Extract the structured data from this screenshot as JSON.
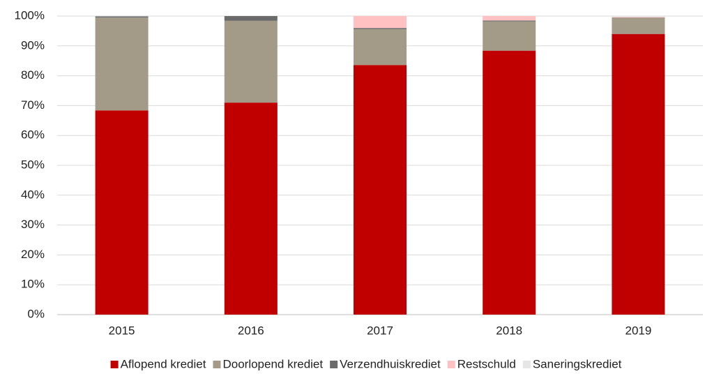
{
  "chart_data": {
    "type": "stacked_bar",
    "categories": [
      "2015",
      "2016",
      "2017",
      "2018",
      "2019"
    ],
    "series": [
      {
        "name": "Aflopend krediet",
        "color": "#c00000",
        "values": [
          68.4,
          71.0,
          83.6,
          88.4,
          94.0
        ]
      },
      {
        "name": "Doorlopend krediet",
        "color": "#a39b87",
        "values": [
          31.1,
          27.4,
          12.0,
          9.8,
          5.4
        ]
      },
      {
        "name": "Verzendhuiskrediet",
        "color": "#6b6b6b",
        "values": [
          0.4,
          1.6,
          0.4,
          0.3,
          0.1
        ]
      },
      {
        "name": "Restschuld",
        "color": "#ffc1c1",
        "values": [
          0,
          0,
          4.0,
          1.5,
          0.2
        ]
      },
      {
        "name": "Saneringskrediet",
        "color": "#e6e6e6",
        "values": [
          0.1,
          0,
          0,
          0,
          0.3
        ]
      }
    ],
    "ylim": [
      0,
      100
    ],
    "yticks": [
      {
        "value": 0,
        "label": "0%"
      },
      {
        "value": 10,
        "label": "10%"
      },
      {
        "value": 20,
        "label": "20%"
      },
      {
        "value": 30,
        "label": "30%"
      },
      {
        "value": 40,
        "label": "40%"
      },
      {
        "value": 50,
        "label": "50%"
      },
      {
        "value": 60,
        "label": "60%"
      },
      {
        "value": 70,
        "label": "70%"
      },
      {
        "value": 80,
        "label": "80%"
      },
      {
        "value": 90,
        "label": "90%"
      },
      {
        "value": 100,
        "label": "100%"
      }
    ],
    "grid": true,
    "legend": "bottom"
  }
}
